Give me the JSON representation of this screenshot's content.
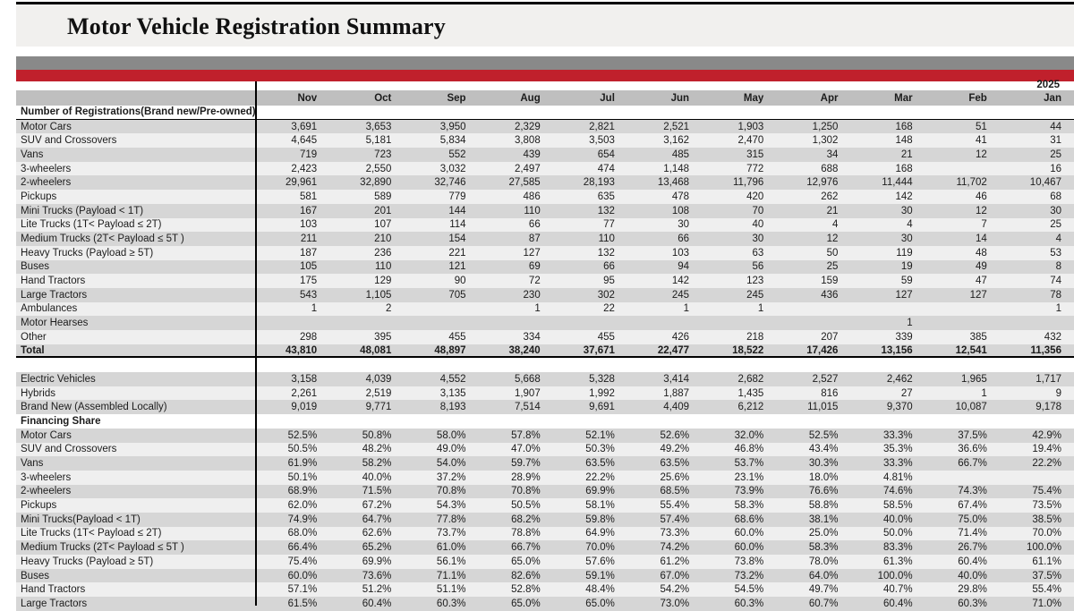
{
  "title": "Motor Vehicle Registration Summary",
  "year_label": "2025",
  "months": [
    "Nov",
    "Oct",
    "Sep",
    "Aug",
    "Jul",
    "Jun",
    "May",
    "Apr",
    "Mar",
    "Feb",
    "Jan"
  ],
  "colors": {
    "top_bar_gray": "#898989",
    "accent_red": "#c0202c",
    "month_header_bg": "#bfbfbf",
    "stripe_gray": "#d6d6d6",
    "stripe_light": "#efefef",
    "title_box_bg": "#f1f0ee"
  },
  "sections": [
    {
      "header": "Number of Registrations(Brand new/Pre-owned)",
      "header_underlined": true,
      "rows": [
        {
          "label": "Motor Cars",
          "values": [
            "3,691",
            "3,653",
            "3,950",
            "2,329",
            "2,821",
            "2,521",
            "1,903",
            "1,250",
            "168",
            "51",
            "44"
          ]
        },
        {
          "label": "SUV and Crossovers",
          "values": [
            "4,645",
            "5,181",
            "5,834",
            "3,808",
            "3,503",
            "3,162",
            "2,470",
            "1,302",
            "148",
            "41",
            "31"
          ]
        },
        {
          "label": "Vans",
          "values": [
            "719",
            "723",
            "552",
            "439",
            "654",
            "485",
            "315",
            "34",
            "21",
            "12",
            "25"
          ]
        },
        {
          "label": "3-wheelers",
          "values": [
            "2,423",
            "2,550",
            "3,032",
            "2,497",
            "474",
            "1,148",
            "772",
            "688",
            "168",
            "",
            "16"
          ]
        },
        {
          "label": "2-wheelers",
          "values": [
            "29,961",
            "32,890",
            "32,746",
            "27,585",
            "28,193",
            "13,468",
            "11,796",
            "12,976",
            "11,444",
            "11,702",
            "10,467"
          ]
        },
        {
          "label": "Pickups",
          "values": [
            "581",
            "589",
            "779",
            "486",
            "635",
            "478",
            "420",
            "262",
            "142",
            "46",
            "68"
          ]
        },
        {
          "label": "Mini Trucks (Payload < 1T)",
          "values": [
            "167",
            "201",
            "144",
            "110",
            "132",
            "108",
            "70",
            "21",
            "30",
            "12",
            "30"
          ]
        },
        {
          "label": "Lite Trucks (1T< Payload  ≤ 2T)",
          "values": [
            "103",
            "107",
            "114",
            "66",
            "77",
            "30",
            "40",
            "4",
            "4",
            "7",
            "25"
          ]
        },
        {
          "label": "Medium Trucks (2T< Payload  ≤ 5T )",
          "values": [
            "211",
            "210",
            "154",
            "87",
            "110",
            "66",
            "30",
            "12",
            "30",
            "14",
            "4"
          ]
        },
        {
          "label": "Heavy Trucks (Payload  ≥ 5T)",
          "values": [
            "187",
            "236",
            "221",
            "127",
            "132",
            "103",
            "63",
            "50",
            "119",
            "48",
            "53"
          ]
        },
        {
          "label": "Buses",
          "values": [
            "105",
            "110",
            "121",
            "69",
            "66",
            "94",
            "56",
            "25",
            "19",
            "49",
            "8"
          ]
        },
        {
          "label": "Hand Tractors",
          "values": [
            "175",
            "129",
            "90",
            "72",
            "95",
            "142",
            "123",
            "159",
            "59",
            "47",
            "74"
          ]
        },
        {
          "label": "Large Tractors",
          "values": [
            "543",
            "1,105",
            "705",
            "230",
            "302",
            "245",
            "245",
            "436",
            "127",
            "127",
            "78"
          ]
        },
        {
          "label": "Ambulances",
          "values": [
            "1",
            "2",
            "",
            "1",
            "22",
            "1",
            "1",
            "",
            "",
            "",
            "1"
          ]
        },
        {
          "label": "Motor Hearses",
          "values": [
            "",
            "",
            "",
            "",
            "",
            "",
            "",
            "",
            "1",
            "",
            ""
          ]
        },
        {
          "label": "Other",
          "values": [
            "298",
            "395",
            "455",
            "334",
            "455",
            "426",
            "218",
            "207",
            "339",
            "385",
            "432"
          ]
        },
        {
          "label": "Total",
          "bold": true,
          "total": true,
          "values": [
            "43,810",
            "48,081",
            "48,897",
            "38,240",
            "37,671",
            "22,477",
            "18,522",
            "17,426",
            "13,156",
            "12,541",
            "11,356"
          ]
        }
      ]
    },
    {
      "header": null,
      "spacer_before": true,
      "rows": [
        {
          "label": "Electric Vehicles",
          "values": [
            "3,158",
            "4,039",
            "4,552",
            "5,668",
            "5,328",
            "3,414",
            "2,682",
            "2,527",
            "2,462",
            "1,965",
            "1,717"
          ]
        },
        {
          "label": "Hybrids",
          "values": [
            "2,261",
            "2,519",
            "3,135",
            "1,907",
            "1,992",
            "1,887",
            "1,435",
            "816",
            "27",
            "1",
            "9"
          ]
        },
        {
          "label": "Brand New (Assembled Locally)",
          "values": [
            "9,019",
            "9,771",
            "8,193",
            "7,514",
            "9,691",
            "4,409",
            "6,212",
            "11,015",
            "9,370",
            "10,087",
            "9,178"
          ]
        }
      ]
    },
    {
      "header": "Financing Share",
      "header_underlined": false,
      "rows": [
        {
          "label": "Motor Cars",
          "values": [
            "52.5%",
            "50.8%",
            "58.0%",
            "57.8%",
            "52.1%",
            "52.6%",
            "32.0%",
            "52.5%",
            "33.3%",
            "37.5%",
            "42.9%"
          ]
        },
        {
          "label": "SUV and Crossovers",
          "values": [
            "50.5%",
            "48.2%",
            "49.0%",
            "47.0%",
            "50.3%",
            "49.2%",
            "46.8%",
            "43.4%",
            "35.3%",
            "36.6%",
            "19.4%"
          ]
        },
        {
          "label": "Vans",
          "values": [
            "61.9%",
            "58.2%",
            "54.0%",
            "59.7%",
            "63.5%",
            "63.5%",
            "53.7%",
            "30.3%",
            "33.3%",
            "66.7%",
            "22.2%"
          ]
        },
        {
          "label": "3-wheelers",
          "values": [
            "50.1%",
            "40.0%",
            "37.2%",
            "28.9%",
            "22.2%",
            "25.6%",
            "23.1%",
            "18.0%",
            "4.81%",
            "",
            ""
          ]
        },
        {
          "label": "2-wheelers",
          "values": [
            "68.9%",
            "71.5%",
            "70.8%",
            "70.8%",
            "69.9%",
            "68.5%",
            "73.9%",
            "76.6%",
            "74.6%",
            "74.3%",
            "75.4%"
          ]
        },
        {
          "label": "Pickups",
          "values": [
            "62.0%",
            "67.2%",
            "54.3%",
            "50.5%",
            "58.1%",
            "55.4%",
            "58.3%",
            "58.8%",
            "58.5%",
            "67.4%",
            "73.5%"
          ]
        },
        {
          "label": "Mini Trucks(Payload < 1T)",
          "values": [
            "74.9%",
            "64.7%",
            "77.8%",
            "68.2%",
            "59.8%",
            "57.4%",
            "68.6%",
            "38.1%",
            "40.0%",
            "75.0%",
            "38.5%"
          ]
        },
        {
          "label": "Lite Trucks (1T< Payload  ≤ 2T)",
          "values": [
            "68.0%",
            "62.6%",
            "73.7%",
            "78.8%",
            "64.9%",
            "73.3%",
            "60.0%",
            "25.0%",
            "50.0%",
            "71.4%",
            "70.0%"
          ]
        },
        {
          "label": "Medium Trucks (2T< Payload  ≤ 5T )",
          "values": [
            "66.4%",
            "65.2%",
            "61.0%",
            "66.7%",
            "70.0%",
            "74.2%",
            "60.0%",
            "58.3%",
            "83.3%",
            "26.7%",
            "100.0%"
          ]
        },
        {
          "label": "Heavy Trucks (Payload  ≥ 5T)",
          "values": [
            "75.4%",
            "69.9%",
            "56.1%",
            "65.0%",
            "57.6%",
            "61.2%",
            "73.8%",
            "78.0%",
            "61.3%",
            "60.4%",
            "61.1%"
          ]
        },
        {
          "label": "Buses",
          "values": [
            "60.0%",
            "73.6%",
            "71.1%",
            "82.6%",
            "59.1%",
            "67.0%",
            "73.2%",
            "64.0%",
            "100.0%",
            "40.0%",
            "37.5%"
          ]
        },
        {
          "label": "Hand Tractors",
          "values": [
            "57.1%",
            "51.2%",
            "51.1%",
            "52.8%",
            "48.4%",
            "54.2%",
            "54.5%",
            "49.7%",
            "40.7%",
            "29.8%",
            "55.4%"
          ]
        },
        {
          "label": "Large Tractors",
          "partial": true,
          "values": [
            "61.5%",
            "60.4%",
            "60.3%",
            "65.0%",
            "65.0%",
            "73.0%",
            "60.3%",
            "60.7%",
            "60.4%",
            "60.3%",
            "71.0%"
          ]
        }
      ]
    }
  ]
}
